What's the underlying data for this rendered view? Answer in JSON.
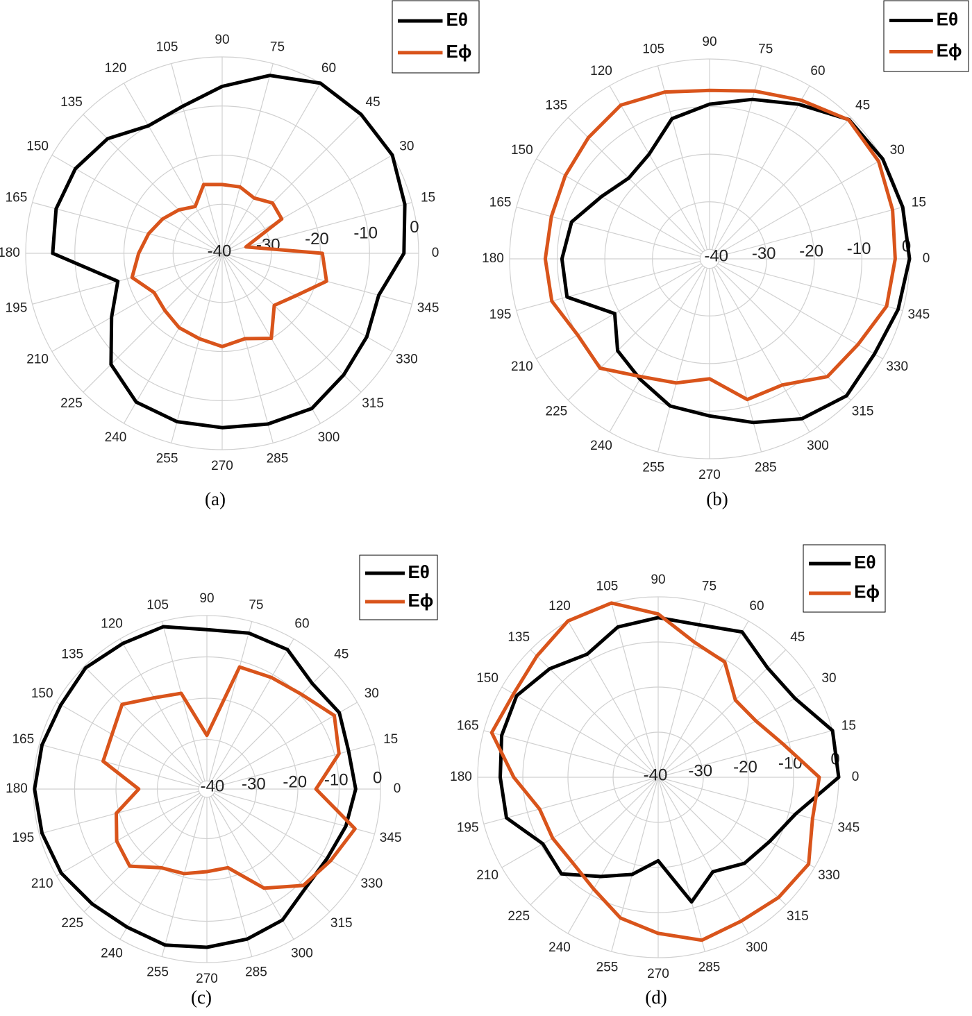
{
  "chart_data": [
    {
      "type": "polar",
      "caption": "(a)",
      "x": [
        0,
        15,
        30,
        45,
        60,
        75,
        90,
        105,
        120,
        135,
        150,
        165,
        180,
        195,
        210,
        225,
        240,
        255,
        270,
        285,
        300,
        315,
        330,
        345
      ],
      "xticks": [
        0,
        15,
        30,
        45,
        60,
        75,
        90,
        105,
        120,
        135,
        150,
        165,
        180,
        195,
        210,
        225,
        240,
        255,
        270,
        285,
        300,
        315,
        330,
        345
      ],
      "ylim": [
        -40,
        0
      ],
      "yticks": [
        -40,
        -30,
        -20,
        -10,
        0
      ],
      "grid": true,
      "series": [
        {
          "name": "Eθ",
          "color": "#000000",
          "values": [
            -3,
            -1.5,
            0,
            0,
            0,
            -2.5,
            -6,
            -9,
            -10,
            -7,
            -5.5,
            -5,
            -5.5,
            -18,
            -14,
            -8,
            -5,
            -4.5,
            -4.5,
            -4,
            -3.5,
            -5,
            -6,
            -7
          ]
        },
        {
          "name": "Eϕ",
          "color": "#d9541b",
          "values": [
            -19.6,
            -35,
            -26,
            -25.5,
            -27,
            -26,
            -26,
            -25.5,
            -29,
            -27.5,
            -26,
            -24.5,
            -23,
            -21,
            -24,
            -23.5,
            -22.5,
            -22,
            -21,
            -22,
            -20,
            -25,
            -22.7,
            -18
          ]
        }
      ]
    },
    {
      "type": "polar",
      "caption": "(b)",
      "x": [
        0,
        15,
        30,
        45,
        60,
        75,
        90,
        105,
        120,
        135,
        150,
        165,
        180,
        195,
        210,
        225,
        240,
        255,
        270,
        285,
        300,
        315,
        330,
        345
      ],
      "xticks": [
        0,
        15,
        30,
        45,
        60,
        75,
        90,
        105,
        120,
        135,
        150,
        165,
        180,
        195,
        210,
        225,
        240,
        255,
        270,
        285,
        300,
        315,
        330,
        345
      ],
      "ylim": [
        -42,
        0
      ],
      "yticks": [
        -40,
        -30,
        -20,
        -10,
        0
      ],
      "grid": true,
      "series": [
        {
          "name": "Eθ",
          "color": "#000000",
          "values": [
            0,
            0,
            0,
            -0.6,
            -4.5,
            -7.3,
            -9.5,
            -11.5,
            -16.6,
            -18,
            -15.8,
            -12,
            -11,
            -11,
            -19,
            -14.7,
            -12.8,
            -10,
            -9,
            -6.4,
            -3.2,
            -1.3,
            -2,
            -1
          ]
        },
        {
          "name": "Eϕ",
          "color": "#d9541b",
          "values": [
            -3,
            -2.2,
            -1,
            -0.7,
            -3.5,
            -5.5,
            -6.6,
            -5.7,
            -4.7,
            -6,
            -7,
            -7.6,
            -7.5,
            -7.7,
            -10,
            -9.5,
            -13.4,
            -15,
            -16.8,
            -11.4,
            -11.4,
            -7,
            -6,
            -3.5
          ]
        }
      ]
    },
    {
      "type": "polar",
      "caption": "(c)",
      "x": [
        0,
        15,
        30,
        45,
        60,
        75,
        90,
        105,
        120,
        135,
        150,
        165,
        180,
        195,
        210,
        225,
        240,
        255,
        270,
        285,
        300,
        315,
        330,
        345
      ],
      "xticks": [
        0,
        15,
        30,
        45,
        60,
        75,
        90,
        105,
        120,
        135,
        150,
        165,
        180,
        195,
        210,
        225,
        240,
        255,
        270,
        285,
        300,
        315,
        330,
        345
      ],
      "ylim": [
        -42,
        0
      ],
      "yticks": [
        -40,
        -30,
        -20,
        -10,
        0
      ],
      "grid": true,
      "series": [
        {
          "name": "Eθ",
          "color": "#000000",
          "values": [
            -6,
            -6.5,
            -5,
            -5.9,
            -3,
            -2.9,
            -3.4,
            -1.3,
            -1.3,
            -0.5,
            -1.2,
            -0.7,
            -0.3,
            -0.7,
            -1.3,
            -2.7,
            -3.4,
            -2.9,
            -3.7,
            -4.4,
            -5.4,
            -8.2,
            -8.4,
            -7.2
          ]
        },
        {
          "name": "Eϕ",
          "color": "#d9541b",
          "values": [
            -15.6,
            -8.9,
            -6.4,
            -9.6,
            -10.8,
            -11.4,
            -29,
            -18,
            -16.5,
            -13,
            -15.5,
            -16,
            -25.5,
            -19.3,
            -16.8,
            -15.6,
            -20,
            -20.8,
            -22,
            -22.3,
            -14.3,
            -9,
            -7.4,
            -4.9
          ]
        }
      ]
    },
    {
      "type": "polar",
      "caption": "(d)",
      "x": [
        0,
        15,
        30,
        45,
        60,
        75,
        90,
        105,
        120,
        135,
        150,
        165,
        180,
        195,
        210,
        225,
        240,
        255,
        270,
        285,
        300,
        315,
        330,
        345
      ],
      "xticks": [
        0,
        15,
        30,
        45,
        60,
        75,
        90,
        105,
        120,
        135,
        150,
        165,
        180,
        195,
        210,
        225,
        240,
        255,
        270,
        285,
        300,
        315,
        330,
        345
      ],
      "ylim": [
        -40,
        0
      ],
      "yticks": [
        -40,
        -30,
        -20,
        -10,
        0
      ],
      "grid": true,
      "series": [
        {
          "name": "Eθ",
          "color": "#000000",
          "values": [
            0,
            0,
            -5,
            -5.7,
            -2.8,
            -5,
            -4.6,
            -5.5,
            -8.5,
            -6,
            -3.8,
            -4.1,
            -5,
            -5.2,
            -10.5,
            -9.7,
            -14.6,
            -17.7,
            -21.5,
            -11.4,
            -15.8,
            -13,
            -11.5,
            -8.5
          ]
        },
        {
          "name": "Eϕ",
          "color": "#d9541b",
          "values": [
            -4.3,
            -11.4,
            -15,
            -15.8,
            -10.5,
            -9,
            -3.8,
            0,
            0,
            -2,
            -3,
            -1.8,
            -8,
            -12.8,
            -13,
            -13.2,
            -11.4,
            -7.7,
            -5.4,
            -2.6,
            -3.2,
            -2.3,
            -1.5,
            -4.6
          ]
        }
      ]
    }
  ]
}
